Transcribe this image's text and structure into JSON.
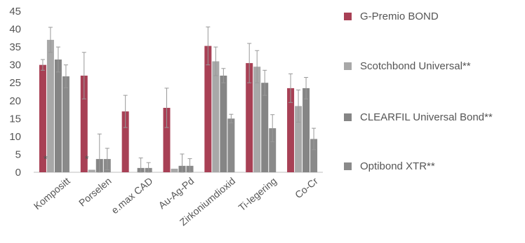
{
  "chart_data": {
    "type": "bar",
    "title": "",
    "xlabel": "",
    "ylabel": "",
    "ylim": [
      0,
      45
    ],
    "yticks": [
      "0",
      "5",
      "10",
      "15",
      "20",
      "25",
      "30",
      "35",
      "40",
      "45"
    ],
    "grid": false,
    "legend_position": "right",
    "categories": [
      "Kompositt",
      "Porselen",
      "e.max CAD",
      "Au-Ag-Pd",
      "Zirkoniumdioxid",
      "Ti-legering",
      "Co-Cr"
    ],
    "series": [
      {
        "name": "G-Premio BOND",
        "color": "#a84055",
        "values": [
          30,
          27,
          17,
          18,
          35.3,
          30.5,
          23.5
        ],
        "errors": [
          1.5,
          6.5,
          4.5,
          5.5,
          5.3,
          5.5,
          4.0
        ],
        "marks": [
          "",
          "*",
          "*",
          "",
          "",
          "",
          ""
        ]
      },
      {
        "name": "Scotchbond Universal**",
        "color": "#a8a8a8",
        "values": [
          37,
          0.7,
          0,
          1,
          31,
          29.5,
          18.5
        ],
        "errors": [
          3.5,
          0,
          0,
          0,
          4,
          4.5,
          4.5
        ]
      },
      {
        "name": "CLEARFIL Universal Bond**",
        "color": "#858585",
        "values": [
          31.5,
          3.7,
          1.2,
          1.8,
          27,
          25,
          23.5
        ],
        "errors": [
          3.5,
          7,
          2.8,
          3.3,
          2,
          3.5,
          3
        ]
      },
      {
        "name": "Optibond XTR**",
        "color": "#8a8a8a",
        "values": [
          26.8,
          3.7,
          1.2,
          1.8,
          15,
          12.3,
          9.3
        ],
        "errors": [
          3.2,
          3,
          1.5,
          2,
          1.2,
          3.8,
          3
        ]
      }
    ]
  }
}
